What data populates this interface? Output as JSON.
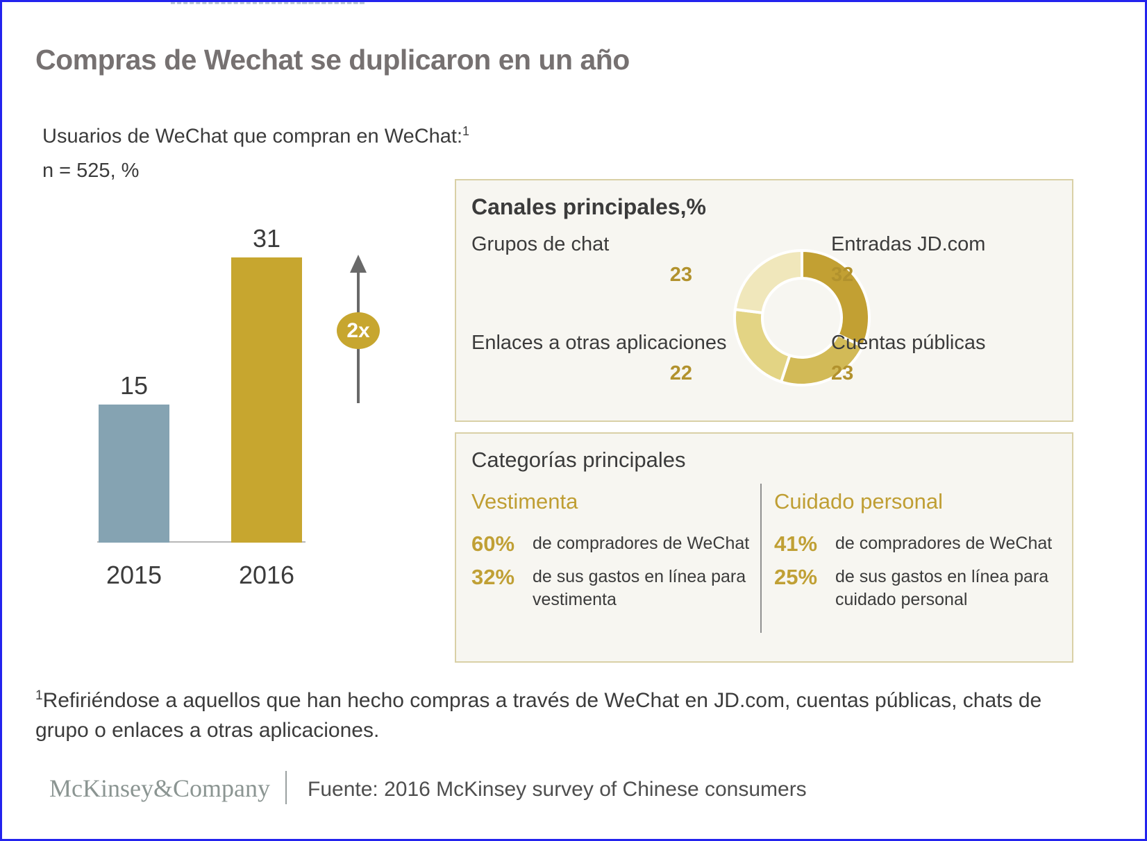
{
  "title": "Compras de Wechat se duplicaron en un año",
  "subtitle": {
    "line1": "Usuarios de WeChat que compran en WeChat:",
    "footnote_marker": "1",
    "line2": "n = 525, %"
  },
  "chart_data": [
    {
      "type": "bar",
      "title": "Usuarios de WeChat que compran en WeChat, n = 525, %",
      "categories": [
        "2015",
        "2016"
      ],
      "values": [
        15,
        31
      ],
      "bar_colors": [
        "#85a3b2",
        "#c7a62f"
      ],
      "annotation": "2x",
      "ylim": [
        0,
        31
      ],
      "grid": false
    },
    {
      "type": "pie",
      "donut": true,
      "title": "Canales principales,%",
      "segments": [
        {
          "label": "Entradas JD.com",
          "value": 32,
          "color": "#c2a033"
        },
        {
          "label": "Cuentas públicas",
          "value": 23,
          "color": "#d2ba57"
        },
        {
          "label": "Enlaces a otras aplicaciones",
          "value": 22,
          "color": "#e3d484"
        },
        {
          "label": "Grupos de chat",
          "value": 23,
          "color": "#f0e7bb"
        }
      ],
      "start_angle": "top",
      "direction": "clockwise"
    }
  ],
  "categorias_panel": {
    "title": "Categorías principales",
    "columns": [
      {
        "heading": "Vestimenta",
        "stats": [
          {
            "pct": "60%",
            "text": "de compradores de WeChat"
          },
          {
            "pct": "32%",
            "text": "de sus gastos en línea para vestimenta"
          }
        ]
      },
      {
        "heading": "Cuidado personal",
        "stats": [
          {
            "pct": "41%",
            "text": "de compradores de WeChat"
          },
          {
            "pct": "25%",
            "text": "de sus gastos en línea para cuidado personal"
          }
        ]
      }
    ]
  },
  "footnote": {
    "marker": "1",
    "text": "Refiriéndose a aquellos que han hecho compras a través de WeChat en JD.com, cuentas públicas, chats de grupo o enlaces a otras aplicaciones."
  },
  "footer": {
    "logo": "McKinsey&Company",
    "source": "Fuente: 2016 McKinsey survey of Chinese consumers"
  },
  "colors": {
    "frame_border": "#2323ee",
    "title_gray": "#767171",
    "text_dark": "#3b3b3b",
    "gold": "#c7a62f",
    "bar_blue": "#85a3b2",
    "panel_bg": "#f7f6f1",
    "panel_border": "#d9d0a6",
    "gold_number": "#b2922d",
    "dashed_guide": "#bccad3",
    "arrow_gray": "#696969"
  }
}
